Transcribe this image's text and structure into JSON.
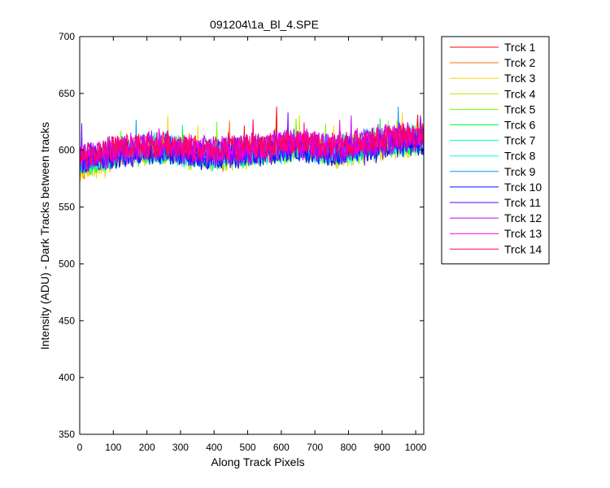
{
  "chart_data": {
    "type": "line",
    "title": "091204\\1a_Bl_4.SPE",
    "xlabel": "Along Track Pixels",
    "ylabel": "Intensity (ADU) - Dark Tracks between tracks",
    "xlim": [
      0,
      1024
    ],
    "ylim": [
      350,
      700
    ],
    "xticks": [
      0,
      100,
      200,
      300,
      400,
      500,
      600,
      700,
      800,
      900,
      1000
    ],
    "yticks": [
      350,
      400,
      450,
      500,
      550,
      600,
      650,
      700
    ],
    "grid": false,
    "legend_location": "outside-right",
    "x_range": [
      0,
      1024
    ],
    "series": [
      {
        "name": "Trck 1",
        "color": "#ff0000",
        "values": [
          585,
          602,
          604,
          596,
          600,
          606,
          601,
          609,
          612
        ]
      },
      {
        "name": "Trck 2",
        "color": "#ff6a00",
        "values": [
          583,
          600,
          602,
          595,
          598,
          604,
          599,
          607,
          610
        ]
      },
      {
        "name": "Trck 3",
        "color": "#ffd200",
        "values": [
          584,
          599,
          601,
          594,
          597,
          603,
          598,
          606,
          609
        ]
      },
      {
        "name": "Trck 4",
        "color": "#cde000",
        "values": [
          585,
          598,
          600,
          594,
          597,
          602,
          598,
          605,
          608
        ]
      },
      {
        "name": "Trck 5",
        "color": "#6cff00",
        "values": [
          586,
          598,
          600,
          594,
          597,
          603,
          598,
          605,
          608
        ]
      },
      {
        "name": "Trck 6",
        "color": "#00ff3a",
        "values": [
          587,
          598,
          601,
          595,
          598,
          603,
          599,
          606,
          609
        ]
      },
      {
        "name": "Trck 7",
        "color": "#00ffaa",
        "values": [
          588,
          599,
          601,
          595,
          598,
          604,
          599,
          606,
          609
        ]
      },
      {
        "name": "Trck 8",
        "color": "#00ffee",
        "values": [
          589,
          599,
          602,
          596,
          599,
          604,
          600,
          607,
          610
        ]
      },
      {
        "name": "Trck 9",
        "color": "#0098ff",
        "values": [
          590,
          597,
          600,
          594,
          597,
          602,
          598,
          605,
          608
        ]
      },
      {
        "name": "Trck 10",
        "color": "#0010ff",
        "values": [
          591,
          596,
          599,
          593,
          596,
          601,
          597,
          604,
          607
        ]
      },
      {
        "name": "Trck 11",
        "color": "#6400ff",
        "values": [
          592,
          600,
          603,
          597,
          600,
          605,
          601,
          608,
          611
        ]
      },
      {
        "name": "Trck 12",
        "color": "#c400ff",
        "values": [
          593,
          601,
          604,
          598,
          601,
          606,
          602,
          609,
          612
        ]
      },
      {
        "name": "Trck 13",
        "color": "#ff00d2",
        "values": [
          594,
          602,
          605,
          599,
          602,
          607,
          603,
          610,
          613
        ]
      },
      {
        "name": "Trck 14",
        "color": "#ff0064",
        "values": [
          595,
          603,
          605,
          600,
          603,
          607,
          604,
          610,
          613
        ]
      }
    ]
  }
}
